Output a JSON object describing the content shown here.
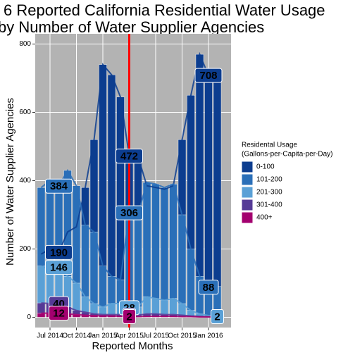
{
  "chart_data": {
    "type": "bar",
    "title": [
      "6 Reported California Residential Water Usage",
      "by Number of Water Supplier Agencies"
    ],
    "x_label": "Reported Months",
    "y_label": "Number of Water Supplier Agencies",
    "categories": [
      null,
      "Jul 2014",
      null,
      null,
      "Oct 2014",
      null,
      null,
      "Jan 2015",
      null,
      null,
      "Apr 2015",
      null,
      null,
      "Jul 2015",
      null,
      null,
      "Oct 2015",
      null,
      null,
      "Jan 2016",
      null
    ],
    "vline": "Apr 2015",
    "vline_color": "#ff0000",
    "ylim": [
      -30,
      830
    ],
    "yticks": [
      0,
      200,
      400,
      600,
      800
    ],
    "grid": true,
    "legend_title": [
      "Residental Usage",
      "(Gallons-per-Capita-per-Day)"
    ],
    "legend": "right",
    "series": [
      {
        "name": "0-100",
        "color": "#0c3d8f",
        "values": [
          185,
          200,
          190,
          250,
          265,
          380,
          520,
          740,
          710,
          645,
          472,
          470,
          385,
          380,
          375,
          385,
          520,
          650,
          770,
          708,
          700
        ],
        "value_labels": [
          null,
          null,
          "190",
          null,
          null,
          null,
          null,
          null,
          null,
          null,
          "472",
          null,
          null,
          null,
          null,
          null,
          null,
          null,
          null,
          "708",
          null
        ]
      },
      {
        "name": "101-200",
        "color": "#2a6fb8",
        "values": [
          380,
          400,
          384,
          430,
          385,
          270,
          250,
          150,
          120,
          110,
          306,
          300,
          395,
          390,
          380,
          390,
          300,
          200,
          120,
          88,
          90
        ],
        "value_labels": [
          null,
          null,
          "384",
          null,
          null,
          null,
          null,
          null,
          null,
          null,
          "306",
          null,
          null,
          null,
          null,
          null,
          null,
          null,
          null,
          "88",
          null
        ]
      },
      {
        "name": "201-300",
        "color": "#5aa0d6",
        "values": [
          150,
          140,
          146,
          120,
          100,
          60,
          40,
          30,
          40,
          40,
          28,
          30,
          60,
          55,
          50,
          55,
          40,
          20,
          10,
          5,
          2
        ],
        "value_labels": [
          null,
          null,
          "146",
          null,
          null,
          null,
          null,
          null,
          null,
          null,
          "28",
          null,
          null,
          null,
          null,
          null,
          null,
          null,
          null,
          null,
          "2"
        ]
      },
      {
        "name": "301-400",
        "color": "#553a96",
        "values": [
          42,
          40,
          40,
          30,
          20,
          15,
          10,
          8,
          8,
          8,
          6,
          6,
          10,
          10,
          8,
          8,
          6,
          4,
          3,
          2,
          1
        ],
        "value_labels": [
          null,
          null,
          "40",
          null,
          null,
          null,
          null,
          null,
          null,
          null,
          "6",
          null,
          null,
          null,
          null,
          null,
          null,
          null,
          null,
          null,
          null
        ]
      },
      {
        "name": "400+",
        "color": "#a3006f",
        "values": [
          12,
          12,
          12,
          10,
          8,
          6,
          5,
          4,
          4,
          3,
          2,
          2,
          3,
          3,
          3,
          3,
          2,
          2,
          1,
          1,
          1
        ],
        "value_labels": [
          null,
          null,
          "12",
          null,
          null,
          null,
          null,
          null,
          null,
          null,
          "2",
          null,
          null,
          null,
          null,
          null,
          null,
          null,
          null,
          null,
          null
        ]
      }
    ]
  }
}
